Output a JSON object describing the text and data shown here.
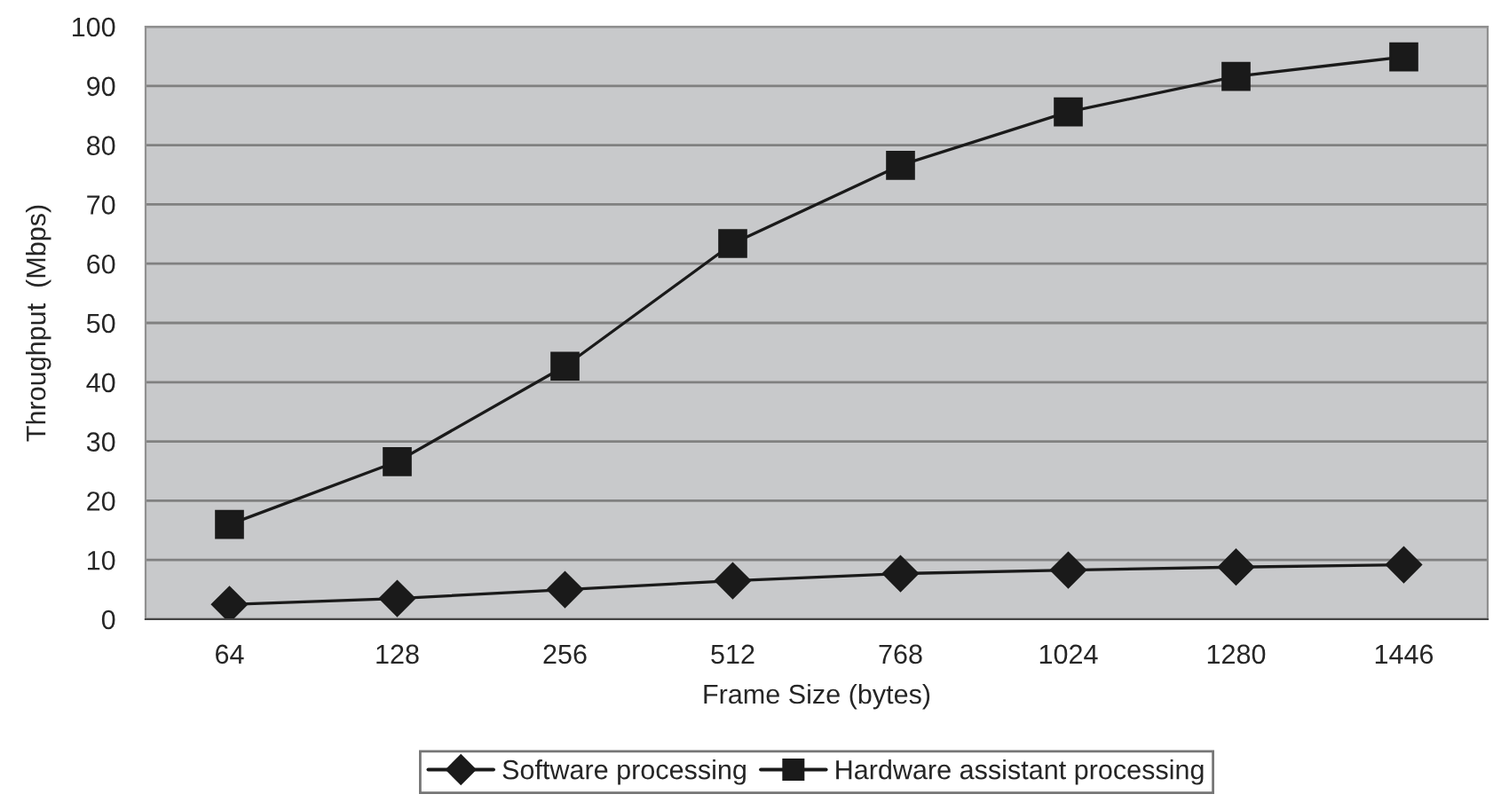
{
  "chart_data": {
    "type": "line",
    "xlabel": "Frame Size (bytes)",
    "ylabel": "Throughput  (Mbps)",
    "categories": [
      "64",
      "128",
      "256",
      "512",
      "768",
      "1024",
      "1280",
      "1446"
    ],
    "series": [
      {
        "name": "Software processing",
        "color": "#1a1a1a",
        "marker": "diamond",
        "values": [
          2.5,
          3.5,
          5.0,
          6.5,
          7.7,
          8.3,
          8.8,
          9.2
        ]
      },
      {
        "name": "Hardware assistant processing",
        "color": "#1a1a1a",
        "marker": "square",
        "values": [
          16.0,
          26.6,
          42.7,
          63.4,
          76.6,
          85.6,
          91.6,
          94.9
        ]
      }
    ],
    "ylim": [
      0,
      100
    ],
    "yticks": [
      0,
      10,
      20,
      30,
      40,
      50,
      60,
      70,
      80,
      90,
      100
    ],
    "grid": "y",
    "legend": "bottom",
    "line_style": "solid"
  }
}
